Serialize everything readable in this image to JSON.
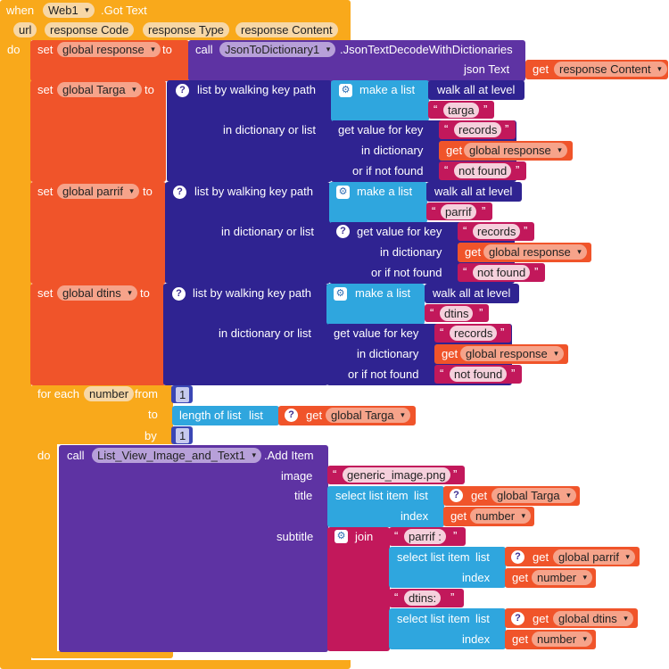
{
  "event": {
    "when_label": "when",
    "component": "Web1",
    "event_name": ".Got Text",
    "params": [
      "url",
      "response Code",
      "response Type",
      "response Content"
    ],
    "do_label": "do"
  },
  "set1": {
    "set_label": "set",
    "variable": "global response",
    "to_label": "to",
    "call_label": "call",
    "component": "JsonToDictionary1",
    "method": ".JsonTextDecodeWithDictionaries",
    "arg_label": "json Text",
    "get_label": "get",
    "get_var": "response Content"
  },
  "walk_blocks": [
    {
      "variable": "global Targa",
      "key": "targa",
      "records": "records",
      "dict_var": "global response",
      "not_found": "not found"
    },
    {
      "variable": "global parrif",
      "key": "parrif",
      "records": "records",
      "dict_var": "global response",
      "not_found": "not found"
    },
    {
      "variable": "global dtins",
      "key": "dtins",
      "records": "records",
      "dict_var": "global response",
      "not_found": "not found"
    }
  ],
  "walk_labels": {
    "set_label": "set",
    "to_label": "to",
    "walk_path": "list by walking key path",
    "make_list": "make a list",
    "walk_all": "walk all at level",
    "in_dict_or_list": "in dictionary or list",
    "get_value_for_key": "get value for key",
    "in_dictionary": "in dictionary",
    "or_if_not_found": "or if not found",
    "get_label": "get"
  },
  "foreach": {
    "for_each": "for each",
    "var": "number",
    "from_label": "from",
    "from_val": "1",
    "to_label": "to",
    "length_of_list": "length of list",
    "list_label": "list",
    "get_label": "get",
    "list_var": "global Targa",
    "by_label": "by",
    "by_val": "1",
    "do_label": "do"
  },
  "additem": {
    "call_label": "call",
    "component": "List_View_Image_and_Text1",
    "method": ".Add Item",
    "image_label": "image",
    "image_val": "generic_image.png",
    "title_label": "title",
    "select_list_item": "select list item",
    "list_label": "list",
    "index_label": "index",
    "get_label": "get",
    "title_list": "global Targa",
    "index_var": "number",
    "subtitle_label": "subtitle",
    "join_label": "join",
    "text1": "parrif :",
    "list1": "global parrif",
    "text2": "dtins:",
    "list2": "global dtins"
  },
  "colors": {
    "event": "#f9a91b",
    "set": "#f0542a",
    "procedure": "#5e33a3",
    "dictionary": "#2f2391",
    "list": "#2fa6de",
    "text": "#c2185b",
    "math": "#3a46b5"
  }
}
